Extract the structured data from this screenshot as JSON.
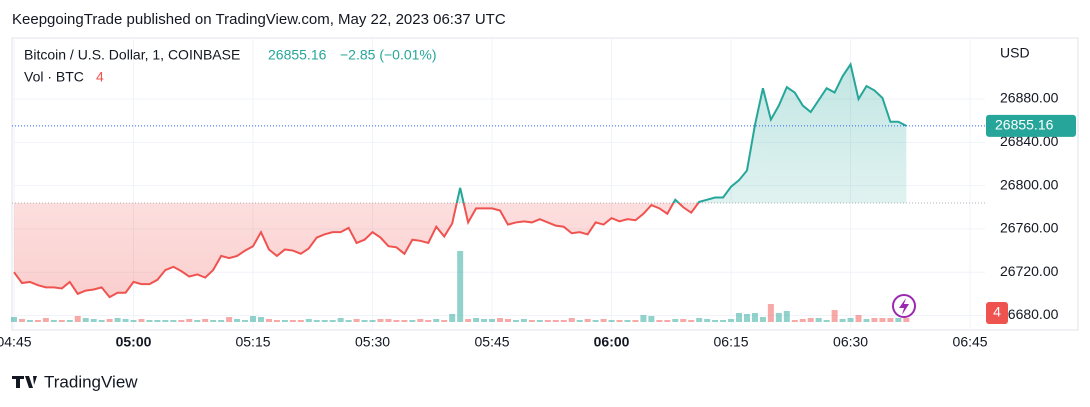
{
  "header": {
    "published": "KeepgoingTrade published on TradingView.com, May 22, 2023 06:37 UTC"
  },
  "footer": {
    "brand": "TradingView"
  },
  "chart_data": {
    "type": "baseline",
    "change": "−2.85 (−0.01%)",
    "y_unit": "USD",
    "baseline": 26784,
    "up_color": "#26a69a",
    "down_color": "#ef5350",
    "x": [
      "04:45",
      "04:46",
      "04:47",
      "04:48",
      "04:49",
      "04:50",
      "04:51",
      "04:52",
      "04:53",
      "04:54",
      "04:55",
      "04:56",
      "04:57",
      "04:58",
      "04:59",
      "05:00",
      "05:01",
      "05:02",
      "05:03",
      "05:04",
      "05:05",
      "05:06",
      "05:07",
      "05:08",
      "05:09",
      "05:10",
      "05:11",
      "05:12",
      "05:13",
      "05:14",
      "05:15",
      "05:16",
      "05:17",
      "05:18",
      "05:19",
      "05:20",
      "05:21",
      "05:22",
      "05:23",
      "05:24",
      "05:25",
      "05:26",
      "05:27",
      "05:28",
      "05:29",
      "05:30",
      "05:31",
      "05:32",
      "05:33",
      "05:34",
      "05:35",
      "05:36",
      "05:37",
      "05:38",
      "05:39",
      "05:40",
      "05:41",
      "05:42",
      "05:43",
      "05:44",
      "05:45",
      "05:46",
      "05:47",
      "05:48",
      "05:49",
      "05:50",
      "05:51",
      "05:52",
      "05:53",
      "05:54",
      "05:55",
      "05:56",
      "05:57",
      "05:58",
      "05:59",
      "06:00",
      "06:01",
      "06:02",
      "06:03",
      "06:04",
      "06:05",
      "06:06",
      "06:07",
      "06:08",
      "06:09",
      "06:10",
      "06:11",
      "06:12",
      "06:13",
      "06:14",
      "06:15",
      "06:16",
      "06:17",
      "06:18",
      "06:19",
      "06:20",
      "06:21",
      "06:22",
      "06:23",
      "06:24",
      "06:25",
      "06:26",
      "06:27",
      "06:28",
      "06:29",
      "06:30",
      "06:31",
      "06:32",
      "06:33",
      "06:34",
      "06:35",
      "06:36",
      "06:37"
    ],
    "series": [
      {
        "name": "Bitcoin / U.S. Dollar, 1, COINBASE",
        "values": [
          26720,
          26710,
          26711,
          26708,
          26706,
          26706,
          26705,
          26711,
          26700,
          26703,
          26704,
          26706,
          26697,
          26701,
          26701,
          26711,
          26709,
          26709,
          26713,
          26722,
          26725,
          26721,
          26716,
          26718,
          26715,
          26722,
          26735,
          26733,
          26735,
          26740,
          26744,
          26757,
          26741,
          26735,
          26741,
          26740,
          26737,
          26742,
          26752,
          26755,
          26757,
          26757,
          26761,
          26747,
          26750,
          26757,
          26752,
          26744,
          26743,
          26737,
          26750,
          26749,
          26747,
          26762,
          26753,
          26765,
          26798,
          26766,
          26779,
          26779,
          26779,
          26777,
          26764,
          26766,
          26767,
          26766,
          26769,
          26766,
          26763,
          26762,
          26756,
          26757,
          26755,
          26766,
          26764,
          26770,
          26767,
          26769,
          26768,
          26774,
          26782,
          26779,
          26774,
          26787,
          26780,
          26775,
          26785,
          26787,
          26789,
          26789,
          26799,
          26805,
          26814,
          26856,
          26890,
          26861,
          26874,
          26891,
          26886,
          26874,
          26868,
          26879,
          26890,
          26886,
          26901,
          26912,
          26880,
          26892,
          26888,
          26881,
          26859,
          26859,
          26855.16
        ]
      },
      {
        "name": "Vol · BTC",
        "values": [
          5,
          3,
          2,
          2,
          4,
          2,
          2,
          2,
          6,
          4,
          3,
          2,
          3,
          4,
          3,
          2,
          3,
          2,
          2,
          2,
          2,
          2,
          3,
          2,
          3,
          2,
          2,
          5,
          3,
          2,
          6,
          5,
          3,
          2,
          2,
          2,
          2,
          3,
          2,
          2,
          2,
          4,
          2,
          3,
          2,
          2,
          3,
          3,
          2,
          2,
          2,
          3,
          2,
          3,
          2,
          8,
          71,
          3,
          4,
          3,
          3,
          4,
          3,
          2,
          3,
          2,
          2,
          2,
          2,
          2,
          4,
          2,
          3,
          2,
          3,
          2,
          2,
          2,
          2,
          7,
          6,
          2,
          2,
          3,
          3,
          2,
          4,
          3,
          2,
          2,
          3,
          9,
          8,
          9,
          5,
          18,
          9,
          11,
          2,
          3,
          4,
          4,
          2,
          12,
          3,
          4,
          7,
          3,
          4,
          4,
          4,
          4,
          4
        ]
      }
    ],
    "xlim": [
      "04:45",
      "06:47"
    ],
    "xticks": [
      "04:45",
      "05:00",
      "05:15",
      "05:30",
      "05:45",
      "06:00",
      "06:15",
      "06:30",
      "06:45"
    ],
    "ylim": [
      26666.6,
      26936.4
    ],
    "yticks": [
      {
        "value": 26680,
        "label": "26680.00"
      },
      {
        "value": 26720,
        "label": "26720.00"
      },
      {
        "value": 26760,
        "label": "26760.00"
      },
      {
        "value": 26800,
        "label": "26800.00"
      },
      {
        "value": 26840,
        "label": "26840.00"
      },
      {
        "value": 26880,
        "label": "26880.00"
      }
    ],
    "grid": true
  }
}
